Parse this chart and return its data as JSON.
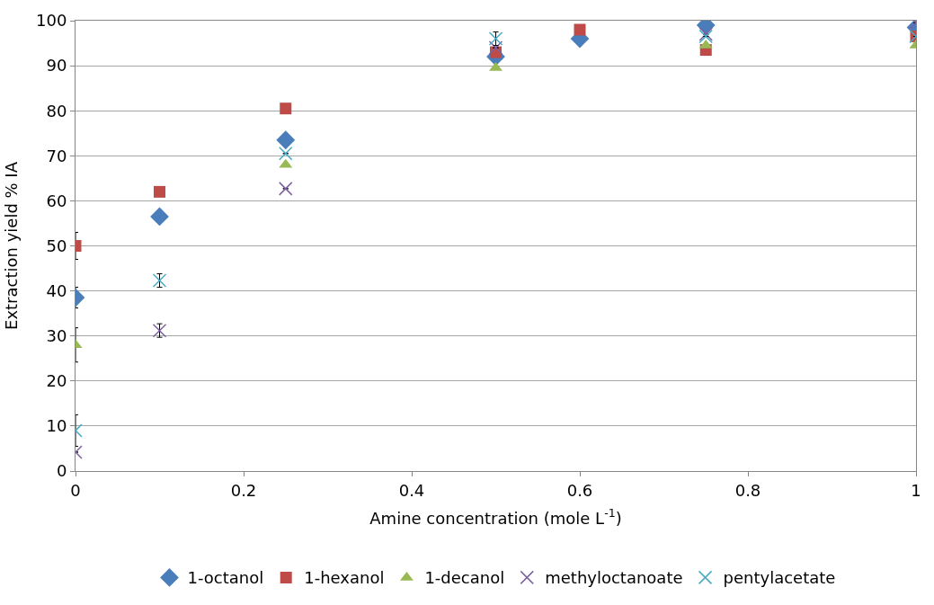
{
  "chart_data": {
    "type": "scatter",
    "xlabel": "Amine concentration (mole L$^{-1}$)",
    "ylabel": "Extraction yield % IA",
    "x": [
      0,
      0.1,
      0.25,
      0.5,
      0.6,
      0.75,
      1
    ],
    "series": [
      {
        "name": "1-octanol",
        "color": "#4a7ebb",
        "marker": "diamond",
        "values": [
          38.5,
          56.5,
          73.5,
          92,
          96,
          99,
          98.5
        ],
        "errors": [
          2.3,
          null,
          null,
          null,
          null,
          null,
          null
        ]
      },
      {
        "name": "1-hexanol",
        "color": "#be4b48",
        "marker": "square",
        "values": [
          50,
          62,
          80.5,
          93,
          98,
          93.5,
          96.5
        ],
        "errors": [
          3,
          null,
          null,
          null,
          null,
          null,
          null
        ]
      },
      {
        "name": "1-decanol",
        "color": "#98b954",
        "marker": "triangle",
        "values": [
          28,
          null,
          68,
          89.5,
          null,
          94.5,
          94.5
        ],
        "errors": [
          3.8,
          null,
          null,
          null,
          null,
          null,
          null
        ]
      },
      {
        "name": "methyloctanoate",
        "color": "#7d60a0",
        "marker": "cross",
        "values": [
          4.2,
          31.2,
          62.7,
          94,
          null,
          97,
          99.5
        ],
        "errors": [
          null,
          1.5,
          null,
          null,
          null,
          null,
          null
        ]
      },
      {
        "name": "pentylacetate",
        "color": "#46aac5",
        "marker": "cross",
        "values": [
          9,
          42.3,
          70.5,
          96,
          null,
          96.5,
          96.5
        ],
        "errors": [
          3.5,
          1.5,
          null,
          1.5,
          null,
          null,
          null
        ]
      }
    ],
    "xlim": [
      0,
      1
    ],
    "xticks": [
      0,
      0.2,
      0.4,
      0.6,
      0.8,
      1
    ],
    "ylim": [
      0,
      100
    ],
    "yticks": [
      0,
      10,
      20,
      30,
      40,
      50,
      60,
      70,
      80,
      90,
      100
    ],
    "grid": "y",
    "legend": "bottom"
  }
}
